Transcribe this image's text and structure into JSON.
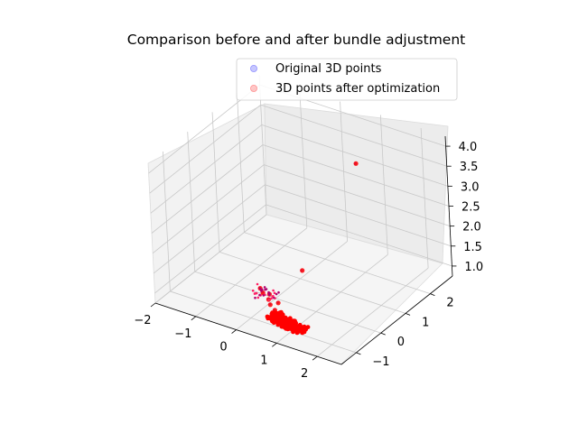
{
  "chart_data": {
    "type": "scatter3d",
    "title": "Comparison before and after bundle adjustment",
    "xlabel": "",
    "ylabel": "",
    "zlabel": "",
    "x_ticks": [
      "−2",
      "−1",
      "0",
      "1",
      "2"
    ],
    "y_ticks": [
      "−1",
      "0",
      "1",
      "2"
    ],
    "z_ticks": [
      "1.0",
      "1.5",
      "2.0",
      "2.5",
      "3.0",
      "3.5",
      "4.0"
    ],
    "grid": true,
    "legend_position": "top-right",
    "series": [
      {
        "name": "Original 3D points",
        "color": "#0000ff",
        "points": [
          [
            0.6,
            -1.0,
            1.0
          ],
          [
            0.8,
            -1.1,
            1.0
          ],
          [
            1.0,
            -1.15,
            1.0
          ],
          [
            1.2,
            -1.2,
            1.0
          ],
          [
            1.35,
            -1.05,
            1.0
          ],
          [
            0.7,
            -0.9,
            1.0
          ],
          [
            0.2,
            -0.6,
            1.1
          ],
          [
            0.0,
            -0.5,
            1.15
          ],
          [
            0.1,
            -0.4,
            1.1
          ],
          [
            -0.1,
            -0.45,
            1.2
          ],
          [
            0.3,
            -0.7,
            1.05
          ],
          [
            0.5,
            -0.85,
            1.05
          ],
          [
            0.9,
            -0.95,
            1.0
          ],
          [
            1.1,
            -1.0,
            1.0
          ],
          [
            1.3,
            -1.25,
            1.0
          ],
          [
            0.4,
            -0.55,
            1.05
          ],
          [
            0.3,
            0.6,
            1.25
          ],
          [
            1.4,
            1.2,
            4.0
          ]
        ]
      },
      {
        "name": "3D points after optimization",
        "color": "#ff0000",
        "points": [
          [
            0.62,
            -1.02,
            1.0
          ],
          [
            0.82,
            -1.12,
            1.0
          ],
          [
            1.02,
            -1.16,
            1.0
          ],
          [
            1.22,
            -1.2,
            1.0
          ],
          [
            1.36,
            -1.06,
            1.0
          ],
          [
            0.72,
            -0.92,
            1.0
          ],
          [
            0.22,
            -0.62,
            1.1
          ],
          [
            0.02,
            -0.52,
            1.15
          ],
          [
            0.12,
            -0.42,
            1.1
          ],
          [
            -0.08,
            -0.46,
            1.2
          ],
          [
            0.32,
            -0.72,
            1.05
          ],
          [
            0.52,
            -0.86,
            1.05
          ],
          [
            0.92,
            -0.96,
            1.0
          ],
          [
            1.12,
            -1.02,
            1.0
          ],
          [
            1.32,
            -1.26,
            1.0
          ],
          [
            0.42,
            -0.56,
            1.05
          ],
          [
            0.31,
            0.61,
            1.25
          ],
          [
            1.41,
            1.21,
            4.0
          ]
        ]
      }
    ]
  }
}
